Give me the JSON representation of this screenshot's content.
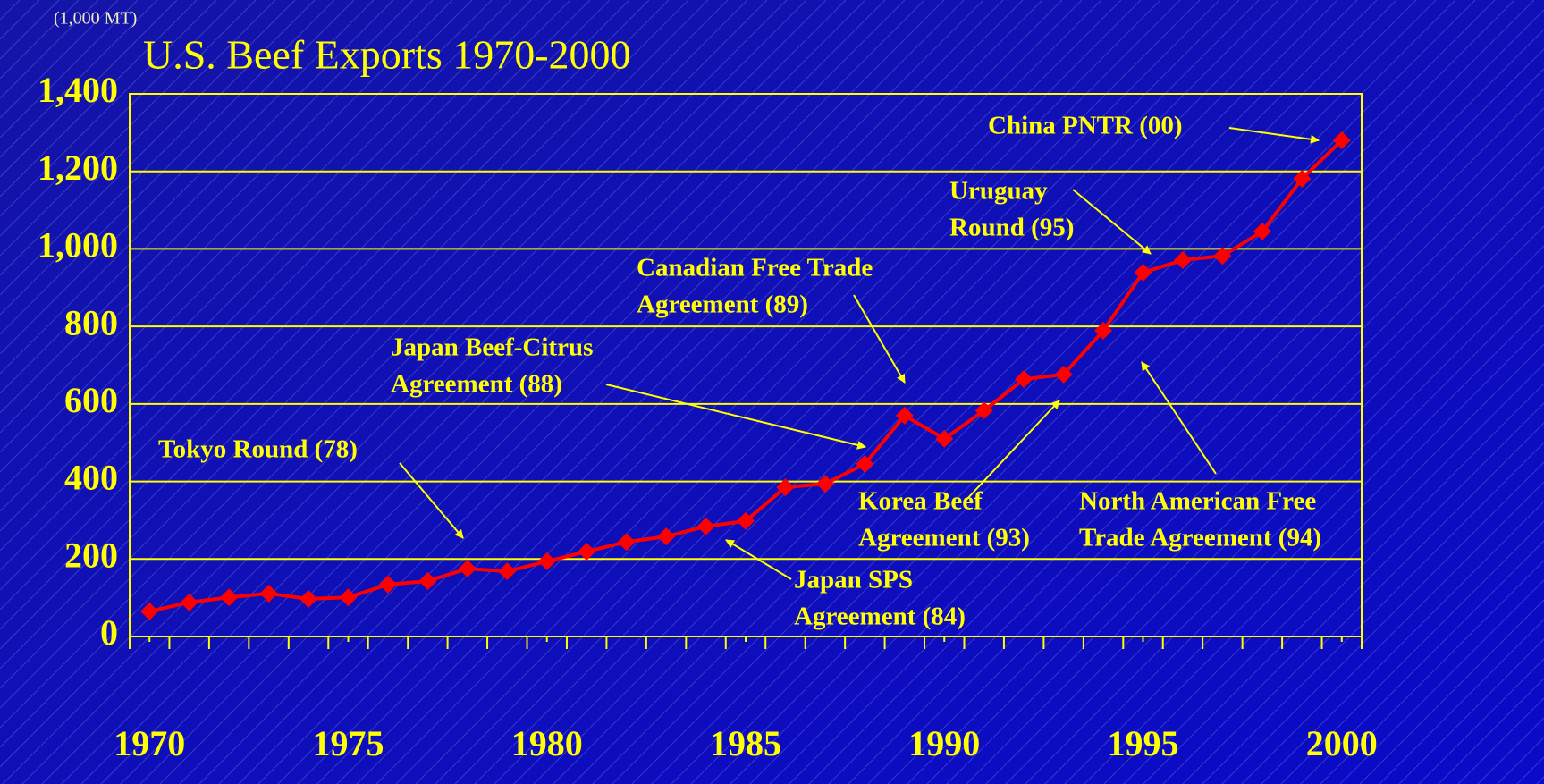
{
  "chart_data": {
    "type": "line",
    "title": "U.S. Beef Exports 1970-2000",
    "y_axis_label": "(1,000 MT)",
    "x": [
      1970,
      1971,
      1972,
      1973,
      1974,
      1975,
      1976,
      1977,
      1978,
      1979,
      1980,
      1981,
      1982,
      1983,
      1984,
      1985,
      1986,
      1987,
      1988,
      1989,
      1990,
      1991,
      1992,
      1993,
      1994,
      1995,
      1996,
      1997,
      1998,
      1999,
      2000
    ],
    "series": [
      {
        "color": "#ff0000",
        "values": [
          65,
          88,
          101,
          111,
          97,
          101,
          134,
          143,
          175,
          168,
          194,
          219,
          244,
          258,
          284,
          298,
          385,
          394,
          445,
          570,
          510,
          583,
          664,
          676,
          789,
          939,
          971,
          982,
          1045,
          1181,
          1280
        ]
      }
    ],
    "xlim": [
      1969.5,
      2000.5
    ],
    "xticks": [
      1970,
      1975,
      1980,
      1985,
      1990,
      1995,
      2000
    ],
    "ylim": [
      0,
      1400
    ],
    "yticks": [
      0,
      200,
      400,
      600,
      800,
      {
        "value": 1000,
        "label": "1,000"
      },
      {
        "value": 1200,
        "label": "1,200"
      },
      {
        "value": 1400,
        "label": "1,400"
      }
    ],
    "grid": true,
    "annotations": [
      {
        "lines": [
          "China PNTR (00)"
        ]
      },
      {
        "lines": [
          "Uruguay",
          "Round (95)"
        ]
      },
      {
        "lines": [
          "Canadian Free Trade",
          "Agreement (89)"
        ]
      },
      {
        "lines": [
          "Japan Beef-Citrus",
          "Agreement (88)"
        ]
      },
      {
        "lines": [
          "Tokyo Round (78)"
        ]
      },
      {
        "lines": [
          "Japan SPS",
          "Agreement (84)"
        ]
      },
      {
        "lines": [
          "Korea Beef",
          "Agreement (93)"
        ]
      },
      {
        "lines": [
          "North American Free",
          "Trade Agreement (94)"
        ]
      }
    ]
  }
}
